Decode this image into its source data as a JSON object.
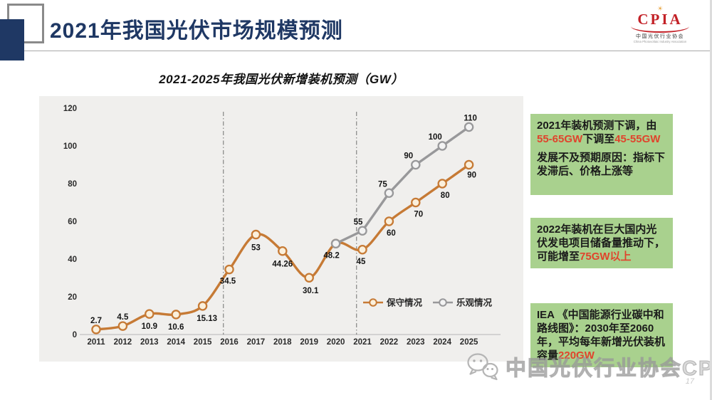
{
  "slide": {
    "header": {
      "title": "2021年我国光伏市场规模预测"
    },
    "logo": {
      "name": "CPIA",
      "cn": "中国光伏行业协会",
      "en": "China Photovoltaic Industry Association"
    },
    "watermark": {
      "text": "中国光伏行业协会CPIA"
    },
    "page_number": "17"
  },
  "colors": {
    "accent_red": "#e0432c",
    "header_navy": "#1f3864",
    "green_box_bg": "#a9d18e",
    "conservative": "#c67a35",
    "optimistic": "#98989a"
  },
  "boxes": [
    {
      "paragraphs": [
        [
          {
            "t": "2021年装机预测下调，由"
          },
          {
            "t": "55-65GW",
            "accent": true
          },
          {
            "t": "下调至"
          },
          {
            "t": "45-55GW",
            "accent": true
          }
        ],
        [
          {
            "t": "发展不及预期原因：指标下发滞后、价格上涨等"
          }
        ]
      ]
    },
    {
      "paragraphs": [
        [
          {
            "t": "2022年装机在巨大国内光伏发电项目储备量推动下，可能增至"
          },
          {
            "t": "75GW以上",
            "accent": true
          }
        ]
      ]
    },
    {
      "paragraphs": [
        [
          {
            "t": "IEA 《中国能源行业碳中和路线图》：2030年至2060年，平均每年新增光伏装机容量"
          },
          {
            "t": "220GW",
            "accent": true
          }
        ]
      ]
    }
  ],
  "chart_data": {
    "type": "line",
    "title": "2021-2025年我国光伏新增装机预测（GW）",
    "unit": "GW",
    "categories": [
      2011,
      2012,
      2013,
      2014,
      2015,
      2016,
      2017,
      2018,
      2019,
      2020,
      2021,
      2022,
      2023,
      2024,
      2025
    ],
    "series": [
      {
        "name": "保守情况",
        "color": "#c67a35",
        "marker_fill": "#fbf0dc",
        "smooth": true,
        "values": [
          2.7,
          4.5,
          10.9,
          10.6,
          15.13,
          34.5,
          53,
          44.26,
          30.1,
          48.2,
          45,
          60,
          70,
          80,
          90
        ],
        "label_offsets": [
          [
            0,
            -9
          ],
          [
            0,
            -9
          ],
          [
            0,
            21
          ],
          [
            0,
            21
          ],
          [
            6,
            21
          ],
          [
            -2,
            20
          ],
          [
            0,
            22
          ],
          [
            0,
            22
          ],
          [
            2,
            22
          ],
          [
            -6,
            20
          ],
          [
            -2,
            20
          ],
          [
            3,
            20
          ],
          [
            4,
            20
          ],
          [
            4,
            20
          ],
          [
            4,
            18
          ]
        ]
      },
      {
        "name": "乐观情况",
        "color": "#98989a",
        "marker_fill": "#f3f3f3",
        "smooth": false,
        "values": [
          null,
          null,
          null,
          null,
          null,
          null,
          null,
          null,
          null,
          48.2,
          55,
          75,
          90,
          100,
          110
        ],
        "label_offsets": [
          null,
          null,
          null,
          null,
          null,
          null,
          null,
          null,
          null,
          null,
          [
            -6,
            -9
          ],
          [
            -9,
            -9
          ],
          [
            -10,
            -9
          ],
          [
            -10,
            -9
          ],
          [
            2,
            -9
          ]
        ]
      }
    ],
    "ylim": [
      0,
      120
    ],
    "yticks": [
      0,
      20,
      40,
      60,
      80,
      100,
      120
    ],
    "grid": false,
    "forecast_dividers": [
      2015.78,
      2020.78
    ],
    "legend_position": "inside-right-bottom"
  }
}
